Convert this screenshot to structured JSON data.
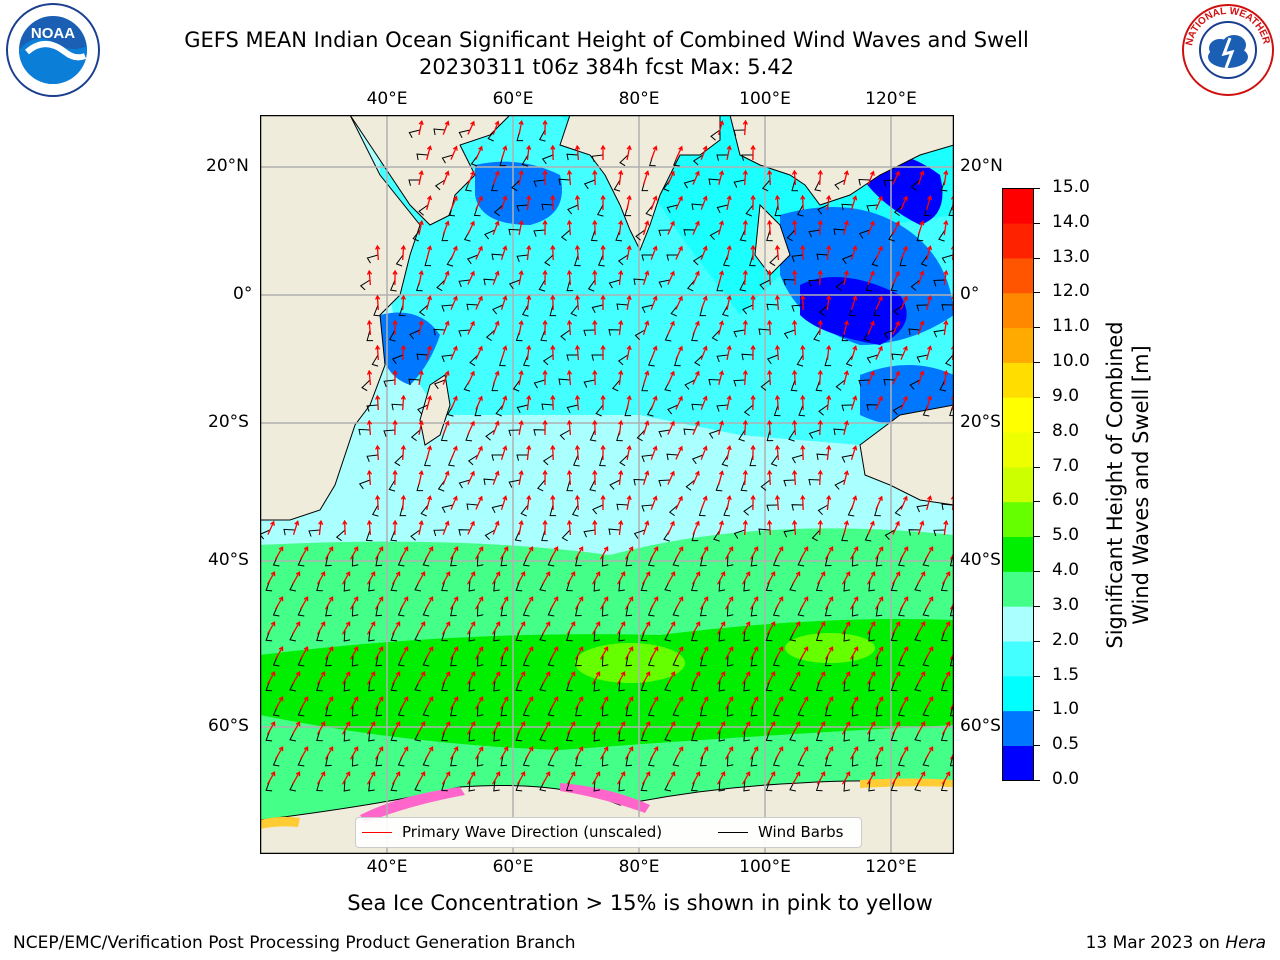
{
  "header": {
    "title_line1": "GEFS MEAN Indian Ocean Significant Height of Combined Wind Waves and Swell",
    "title_line2": "20230311 t06z 384h fcst   Max: 5.42"
  },
  "logos": {
    "left": "NOAA",
    "right": "NATIONAL WEATHER SERVICE"
  },
  "map": {
    "lon_labels": [
      "40°E",
      "60°E",
      "80°E",
      "100°E",
      "120°E"
    ],
    "lat_labels_left": [
      "20°N",
      "0°",
      "20°S",
      "40°S",
      "60°S"
    ],
    "lat_labels_right": [
      "20°N",
      "0°",
      "20°S",
      "40°S",
      "60°S"
    ],
    "land_color": "#efecdc",
    "ice_colors": [
      "#ff66cc",
      "#ffcc33"
    ]
  },
  "legend": {
    "wave_dir": "Primary Wave Direction (unscaled)",
    "wave_dir_color": "#ff0000",
    "wind_barbs": "Wind Barbs",
    "wind_barbs_color": "#000000"
  },
  "colorbar": {
    "label_line1": "Significant Height of Combined",
    "label_line2": "Wind Waves and Swell [m]",
    "ticks": [
      "0.0",
      "0.5",
      "1.0",
      "1.5",
      "2.0",
      "3.0",
      "4.0",
      "5.0",
      "6.0",
      "7.0",
      "8.0",
      "9.0",
      "10.0",
      "11.0",
      "12.0",
      "13.0",
      "14.0",
      "15.0"
    ],
    "colors": [
      "#0000ff",
      "#0077ff",
      "#00ffff",
      "#44ffff",
      "#aaffff",
      "#44ff88",
      "#00ee00",
      "#66ff00",
      "#ccff00",
      "#eeff00",
      "#ffff00",
      "#ffdd00",
      "#ffaa00",
      "#ff8800",
      "#ff5500",
      "#ff2200",
      "#ff0000"
    ]
  },
  "note": "Sea Ice Concentration > 15% is shown in pink to yellow",
  "footer": {
    "left": "NCEP/EMC/Verification Post Processing Product Generation Branch",
    "date": "13 Mar 2023 on ",
    "machine": "Hera"
  }
}
